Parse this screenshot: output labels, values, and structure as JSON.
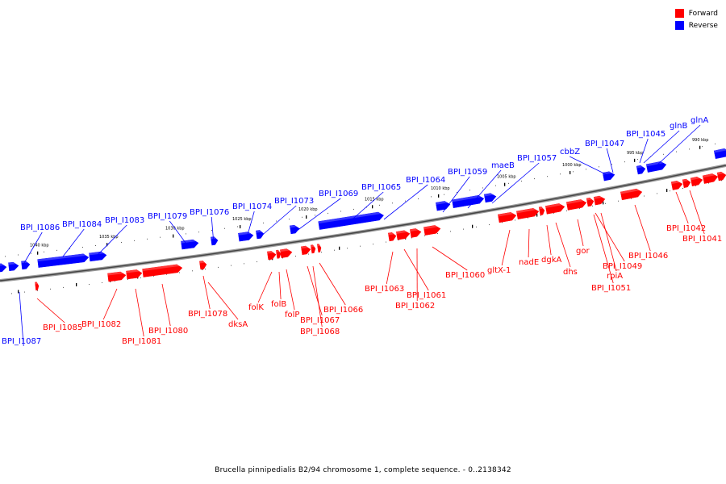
{
  "legend": {
    "forward_label": "Forward",
    "reverse_label": "Reverse",
    "forward_color": "#ff0000",
    "reverse_color": "#0000ff"
  },
  "caption": "Brucella pinnipedialis B2/94 chromosome 1, complete sequence. - 0..2138342",
  "scale_ticks": [
    "1040 kbp",
    "1035 kbp",
    "1030 kbp",
    "1025 kbp",
    "1020 kbp",
    "1015 kbp",
    "1010 kbp",
    "1005 kbp",
    "1000 kbp",
    "995 kbp",
    "990 kbp"
  ],
  "reverse_genes": [
    "BPI_I1087",
    "BPI_I1086",
    "BPI_I1084",
    "BPI_I1083",
    "BPI_I1079",
    "BPI_I1076",
    "BPI_I1074",
    "BPI_I1073",
    "BPI_I1069",
    "BPI_I1065",
    "BPI_I1064",
    "BPI_I1059",
    "maeB",
    "BPI_I1057",
    "cbbZ",
    "BPI_I1047",
    "BPI_I1045",
    "glnB",
    "glnA"
  ],
  "forward_genes": [
    "BPI_I1085",
    "BPI_I1082",
    "BPI_I1081",
    "BPI_I1080",
    "BPI_I1078",
    "dksA",
    "folK",
    "folB",
    "folP",
    "BPI_I1067",
    "BPI_I1068",
    "BPI_I1066",
    "BPI_I1063",
    "BPI_I1061",
    "BPI_I1062",
    "BPI_I1060",
    "gltX-1",
    "nadE",
    "dgkA",
    "dhs",
    "gor",
    "BPI_I1049",
    "rpiA",
    "BPI_I1051",
    "BPI_I1046",
    "BPI_I1042",
    "BPI_I1041"
  ]
}
